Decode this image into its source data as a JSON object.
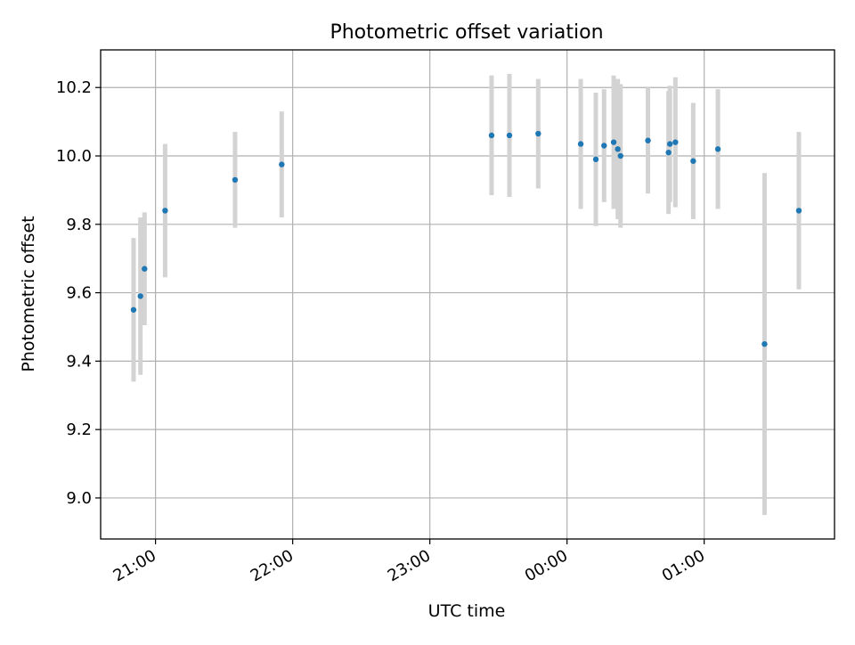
{
  "chart_data": {
    "type": "scatter",
    "title": "Photometric offset variation",
    "xlabel": "UTC time",
    "ylabel": "Photometric offset",
    "x_unit": "UTC time (hours after 00:00 of first night; values >24 are after midnight)",
    "xlim": [
      20.6,
      25.95
    ],
    "ylim": [
      8.88,
      10.31
    ],
    "x_ticks": [
      {
        "value": 21,
        "label": "21:00"
      },
      {
        "value": 22,
        "label": "22:00"
      },
      {
        "value": 23,
        "label": "23:00"
      },
      {
        "value": 24,
        "label": "00:00"
      },
      {
        "value": 25,
        "label": "01:00"
      }
    ],
    "y_ticks": [
      {
        "value": 9.0,
        "label": "9.0"
      },
      {
        "value": 9.2,
        "label": "9.2"
      },
      {
        "value": 9.4,
        "label": "9.4"
      },
      {
        "value": 9.6,
        "label": "9.6"
      },
      {
        "value": 9.8,
        "label": "9.8"
      },
      {
        "value": 10.0,
        "label": "10.0"
      },
      {
        "value": 10.2,
        "label": "10.2"
      }
    ],
    "grid": true,
    "colors": {
      "marker": "#1f77b4",
      "errorbar": "#d3d3d3",
      "grid": "#b0b0b0"
    },
    "points": [
      {
        "t": "20:50",
        "x": 20.84,
        "y": 9.55,
        "err": 0.21
      },
      {
        "t": "20:53",
        "x": 20.89,
        "y": 9.59,
        "err": 0.23
      },
      {
        "t": "20:55",
        "x": 20.92,
        "y": 9.67,
        "err": 0.165
      },
      {
        "t": "21:04",
        "x": 21.07,
        "y": 9.84,
        "err": 0.195
      },
      {
        "t": "21:35",
        "x": 21.58,
        "y": 9.93,
        "err": 0.14
      },
      {
        "t": "21:55",
        "x": 21.92,
        "y": 9.975,
        "err": 0.155
      },
      {
        "t": "23:27",
        "x": 23.45,
        "y": 10.06,
        "err": 0.175
      },
      {
        "t": "23:35",
        "x": 23.58,
        "y": 10.06,
        "err": 0.18
      },
      {
        "t": "23:47",
        "x": 23.79,
        "y": 10.065,
        "err": 0.16
      },
      {
        "t": "00:06",
        "x": 24.1,
        "y": 10.035,
        "err": 0.19
      },
      {
        "t": "00:13",
        "x": 24.21,
        "y": 9.99,
        "err": 0.195
      },
      {
        "t": "00:16",
        "x": 24.27,
        "y": 10.03,
        "err": 0.165
      },
      {
        "t": "00:20",
        "x": 24.34,
        "y": 10.04,
        "err": 0.195
      },
      {
        "t": "00:22",
        "x": 24.37,
        "y": 10.02,
        "err": 0.205
      },
      {
        "t": "00:23",
        "x": 24.39,
        "y": 10.0,
        "err": 0.21
      },
      {
        "t": "00:35",
        "x": 24.59,
        "y": 10.045,
        "err": 0.155
      },
      {
        "t": "00:44",
        "x": 24.74,
        "y": 10.01,
        "err": 0.18
      },
      {
        "t": "00:45",
        "x": 24.75,
        "y": 10.035,
        "err": 0.17
      },
      {
        "t": "00:47",
        "x": 24.79,
        "y": 10.04,
        "err": 0.19
      },
      {
        "t": "00:55",
        "x": 24.92,
        "y": 9.985,
        "err": 0.17
      },
      {
        "t": "01:06",
        "x": 25.1,
        "y": 10.02,
        "err": 0.175
      },
      {
        "t": "01:26",
        "x": 25.44,
        "y": 9.45,
        "err": 0.5
      },
      {
        "t": "01:41",
        "x": 25.69,
        "y": 9.84,
        "err": 0.23
      }
    ]
  }
}
